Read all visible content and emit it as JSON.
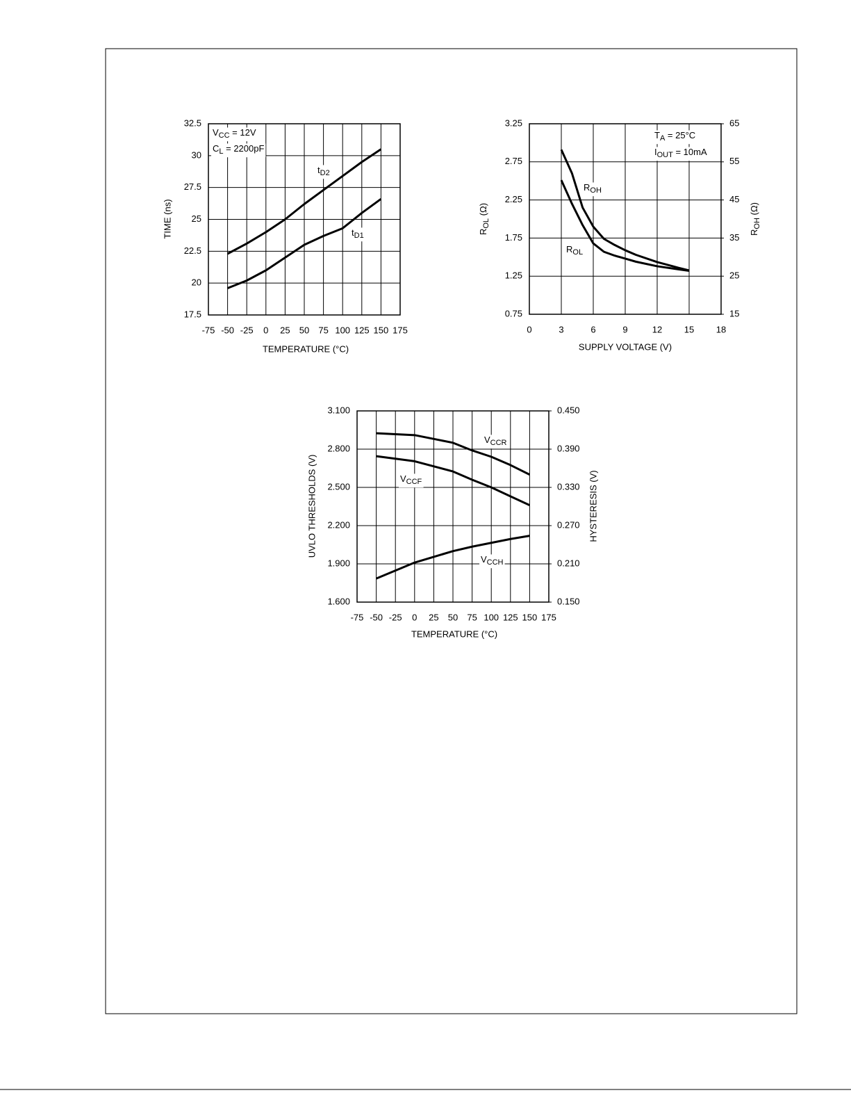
{
  "chart_data": [
    {
      "type": "line",
      "x_label": "TEMPERATURE (°C)",
      "y_label": "TIME (ns)",
      "x": [
        -50,
        -25,
        0,
        25,
        50,
        75,
        100,
        125,
        150
      ],
      "xlim": [
        -75,
        175
      ],
      "xticks": [
        -75,
        -50,
        -25,
        0,
        25,
        50,
        75,
        100,
        125,
        150,
        175
      ],
      "ylim": [
        17.5,
        32.5
      ],
      "yticks": [
        17.5,
        20,
        22.5,
        25,
        27.5,
        30,
        32.5
      ],
      "grid": true,
      "annotations": [
        [
          "V",
          "CC",
          " = 12V"
        ],
        [
          "C",
          "L",
          " = 2200pF"
        ]
      ],
      "series": [
        {
          "name": [
            "t",
            "D2"
          ],
          "color": "#000000",
          "values": [
            22.3,
            23.1,
            24,
            25,
            26.2,
            27.3,
            28.4,
            29.5,
            30.5
          ]
        },
        {
          "name": [
            "t",
            "D1"
          ],
          "color": "#000000",
          "values": [
            19.6,
            20.2,
            21,
            22,
            23,
            23.7,
            24.3,
            25.5,
            26.6
          ]
        }
      ]
    },
    {
      "type": "line",
      "x_label": "SUPPLY VOLTAGE (V)",
      "y_label": [
        "R",
        "OL",
        " (Ω)"
      ],
      "y2_label": [
        "R",
        "OH",
        " (Ω)"
      ],
      "x": [
        3,
        4,
        5,
        6,
        7,
        8,
        9,
        10,
        12,
        14,
        15
      ],
      "xlim": [
        0,
        18
      ],
      "xticks": [
        0,
        3,
        6,
        9,
        12,
        15,
        18
      ],
      "ylim": [
        0.75,
        3.25
      ],
      "yticks": [
        0.75,
        1.25,
        1.75,
        2.25,
        2.75,
        3.25
      ],
      "y2lim": [
        15,
        65
      ],
      "y2ticks": [
        15,
        25,
        35,
        45,
        55,
        65
      ],
      "grid": true,
      "annotations": [
        [
          "T",
          "A",
          " = 25°C"
        ],
        [
          "I",
          "OUT",
          " = 10mA"
        ]
      ],
      "series": [
        {
          "name": [
            "R",
            "OH"
          ],
          "color": "#000000",
          "axis": "y2",
          "values": [
            58.2,
            52,
            43,
            38,
            34.8,
            33.2,
            31.8,
            30.6,
            28.7,
            27.2,
            26.5
          ]
        },
        {
          "name": [
            "R",
            "OL"
          ],
          "color": "#000000",
          "values": [
            2.51,
            2.2,
            1.92,
            1.68,
            1.57,
            1.52,
            1.48,
            1.44,
            1.38,
            1.34,
            1.32
          ]
        }
      ]
    },
    {
      "type": "line",
      "x_label": "TEMPERATURE (°C)",
      "y_label": "UVLO THRESHOLDS (V)",
      "y2_label": "HYSTERESIS (V)",
      "x": [
        -50,
        0,
        50,
        75,
        100,
        125,
        150
      ],
      "xlim": [
        -75,
        175
      ],
      "xticks": [
        -75,
        -50,
        -25,
        0,
        25,
        50,
        75,
        100,
        125,
        150,
        175
      ],
      "ylim": [
        1.6,
        3.1
      ],
      "yticks": [
        {
          "value": 1.6,
          "label": "1.600"
        },
        {
          "value": 1.9,
          "label": "1.900"
        },
        {
          "value": 2.2,
          "label": "2.200"
        },
        {
          "value": 2.5,
          "label": "2.500"
        },
        {
          "value": 2.8,
          "label": "2.800"
        },
        {
          "value": 3.1,
          "label": "3.100"
        }
      ],
      "y2lim": [
        0.15,
        0.45
      ],
      "y2ticks": [
        {
          "value": 0.15,
          "label": "0.150"
        },
        {
          "value": 0.21,
          "label": "0.210"
        },
        {
          "value": 0.27,
          "label": "0.270"
        },
        {
          "value": 0.33,
          "label": "0.330"
        },
        {
          "value": 0.39,
          "label": "0.390"
        },
        {
          "value": 0.45,
          "label": "0.450"
        }
      ],
      "grid": true,
      "series": [
        {
          "name": [
            "V",
            "CCR"
          ],
          "color": "#000000",
          "values": [
            2.925,
            2.91,
            2.85,
            2.79,
            2.74,
            2.675,
            2.6
          ]
        },
        {
          "name": [
            "V",
            "CCF"
          ],
          "color": "#000000",
          "values": [
            2.745,
            2.705,
            2.625,
            2.56,
            2.5,
            2.43,
            2.36
          ]
        },
        {
          "name": [
            "V",
            "CCH"
          ],
          "color": "#000000",
          "axis": "y2",
          "values": [
            0.187,
            0.212,
            0.23,
            0.237,
            0.243,
            0.249,
            0.254
          ]
        }
      ]
    }
  ]
}
